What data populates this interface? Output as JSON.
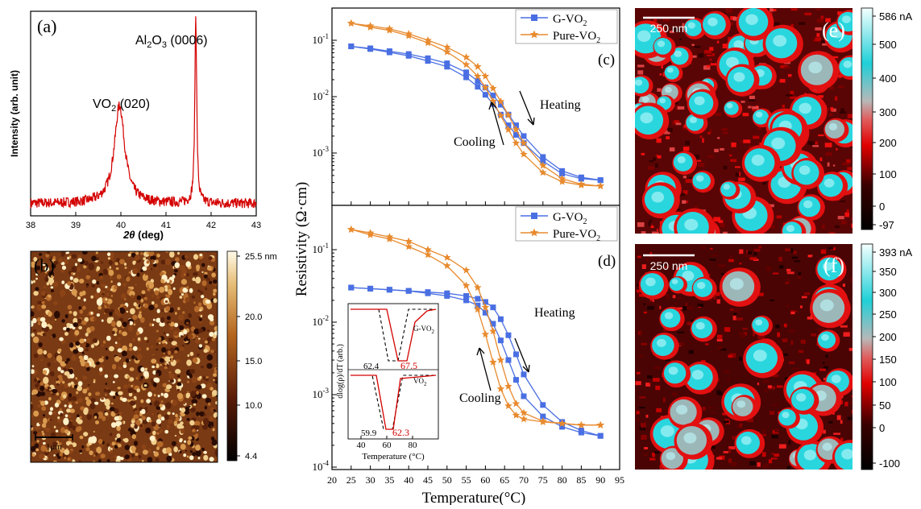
{
  "panels": {
    "a": "(a)",
    "b": "(b)",
    "c": "(c)",
    "d": "(d)",
    "e": "(e)",
    "f": "(f)"
  },
  "colors": {
    "xrd": "#d40000",
    "g_vo2": "#4a6fe3",
    "pure_vo2": "#e88a2e",
    "inset_solid": "#d40000"
  },
  "chart_data": [
    {
      "id": "a",
      "type": "line",
      "xlabel": "2θ (deg)",
      "ylabel": "Intensity (arb. unit)",
      "xlim": [
        38,
        43
      ],
      "xticks": [
        "38",
        "39",
        "40",
        "41",
        "42",
        "43"
      ],
      "annotations": [
        "VO2 (020)",
        "Al2O3 (0006)"
      ],
      "peaks": [
        {
          "x": 39.97,
          "height": 0.48,
          "width": 0.14
        },
        {
          "x": 41.66,
          "height": 0.92,
          "width": 0.025
        }
      ],
      "baseline": 0.06
    },
    {
      "id": "b",
      "type": "heatmap",
      "colorbar_ticks": [
        "25.5 nm",
        "20.0",
        "15.0",
        "10.0",
        "4.4"
      ],
      "scalebar": "1μm"
    },
    {
      "id": "c",
      "type": "line",
      "scale": "log",
      "ylim": [
        0.0001,
        0.3
      ],
      "xlim": [
        20,
        95
      ],
      "y_tick_labels": [
        "10^-1",
        "10^-2",
        "10^-3"
      ],
      "series": [
        {
          "name": "G-VO2",
          "marker": "square",
          "x": [
            25,
            30,
            35,
            40,
            45,
            50,
            55,
            58,
            60,
            62,
            64,
            66,
            68,
            70,
            75,
            80,
            85,
            90
          ],
          "heating": [
            0.078,
            0.072,
            0.064,
            0.057,
            0.048,
            0.039,
            0.027,
            0.019,
            0.0145,
            0.0105,
            0.0072,
            0.0048,
            0.0031,
            0.002,
            0.00085,
            0.00048,
            0.00037,
            0.00033
          ],
          "cooling": [
            0.078,
            0.07,
            0.061,
            0.053,
            0.043,
            0.034,
            0.022,
            0.015,
            0.0108,
            0.0074,
            0.0048,
            0.0031,
            0.0021,
            0.0015,
            0.00072,
            0.00043,
            0.00035,
            0.00033
          ]
        },
        {
          "name": "Pure-VO2",
          "marker": "star",
          "x": [
            25,
            30,
            35,
            40,
            45,
            50,
            55,
            58,
            60,
            62,
            64,
            66,
            68,
            70,
            75,
            80,
            85,
            90
          ],
          "heating": [
            0.2,
            0.18,
            0.16,
            0.13,
            0.1,
            0.075,
            0.05,
            0.034,
            0.023,
            0.014,
            0.0082,
            0.0047,
            0.0026,
            0.0015,
            0.0006,
            0.00035,
            0.00028,
            0.00026
          ],
          "cooling": [
            0.2,
            0.17,
            0.15,
            0.12,
            0.09,
            0.062,
            0.037,
            0.023,
            0.0145,
            0.0083,
            0.0046,
            0.0026,
            0.0015,
            0.00095,
            0.00045,
            0.00031,
            0.00027,
            0.00026
          ]
        }
      ],
      "annotations": [
        "Heating",
        "Cooling"
      ]
    },
    {
      "id": "d",
      "type": "line",
      "scale": "log",
      "ylim": [
        0.0001,
        0.3
      ],
      "xlim": [
        20,
        95
      ],
      "xlabel": "Temperature(°C)",
      "ylabel": "Resistivity (Ω·cm)",
      "xticks": [
        "20",
        "25",
        "30",
        "35",
        "40",
        "45",
        "50",
        "55",
        "60",
        "65",
        "70",
        "75",
        "80",
        "85",
        "90",
        "95"
      ],
      "y_tick_labels": [
        "10^-1",
        "10^-2",
        "10^-3",
        "10^-4"
      ],
      "series": [
        {
          "name": "G-VO2",
          "marker": "square",
          "x": [
            25,
            30,
            35,
            40,
            45,
            50,
            55,
            58,
            60,
            62,
            64,
            66,
            68,
            70,
            75,
            80,
            85,
            90
          ],
          "heating": [
            0.03,
            0.029,
            0.028,
            0.027,
            0.026,
            0.025,
            0.023,
            0.021,
            0.019,
            0.016,
            0.011,
            0.0066,
            0.0036,
            0.0019,
            0.00072,
            0.00042,
            0.00032,
            0.00027
          ],
          "cooling": [
            0.03,
            0.029,
            0.028,
            0.027,
            0.025,
            0.023,
            0.02,
            0.017,
            0.0135,
            0.0095,
            0.0056,
            0.003,
            0.0016,
            0.00095,
            0.0005,
            0.00036,
            0.0003,
            0.00027
          ]
        },
        {
          "name": "Pure-VO2",
          "marker": "star",
          "x": [
            25,
            30,
            35,
            40,
            45,
            50,
            55,
            58,
            60,
            62,
            64,
            66,
            68,
            70,
            75,
            80,
            85,
            90
          ],
          "heating": [
            0.19,
            0.17,
            0.15,
            0.13,
            0.1,
            0.078,
            0.052,
            0.03,
            0.016,
            0.0075,
            0.003,
            0.0013,
            0.00075,
            0.00056,
            0.00043,
            0.0004,
            0.00038,
            0.00038
          ],
          "cooling": [
            0.19,
            0.16,
            0.14,
            0.11,
            0.085,
            0.06,
            0.032,
            0.015,
            0.0068,
            0.0028,
            0.0012,
            0.0007,
            0.00052,
            0.00046,
            0.00042,
            0.0004,
            0.00038,
            0.00038
          ]
        }
      ],
      "annotations": [
        "Heating",
        "Cooling"
      ],
      "inset": {
        "xlabel": "Temperature (°C)",
        "ylabel": "dlog(ρ)/dT (arb.)",
        "xticks": [
          "40",
          "60",
          "80"
        ],
        "labels": [
          "G-VO2",
          "VO2"
        ],
        "values": [
          "62.4",
          "67.5",
          "59.9",
          "62.3"
        ]
      }
    },
    {
      "id": "e",
      "type": "heatmap",
      "scalebar": "250 nm",
      "colorbar_ticks": [
        "586 nA",
        "500",
        "400",
        "300",
        "200",
        "100",
        "0",
        "-97"
      ]
    },
    {
      "id": "f",
      "type": "heatmap",
      "scalebar": "250 nm",
      "colorbar_ticks": [
        "393 nA",
        "350",
        "300",
        "250",
        "200",
        "150",
        "100",
        "50",
        "0",
        "-100"
      ]
    }
  ]
}
